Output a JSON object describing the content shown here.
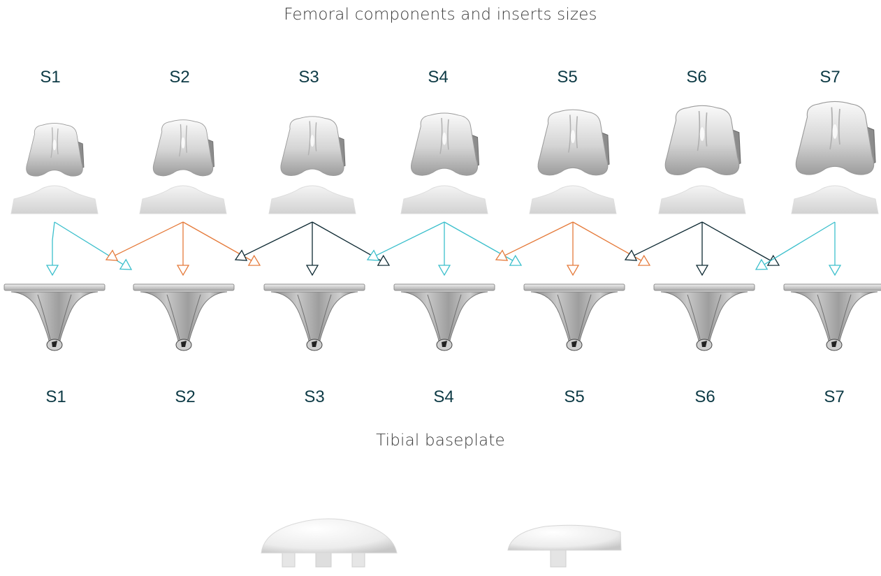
{
  "femoral_title": "Femoral components and inserts sizes",
  "tibial_title": "Tibial baseplate",
  "femoral_sizes": [
    "S1",
    "S2",
    "S3",
    "S4",
    "S5",
    "S6",
    "S7"
  ],
  "tibial_sizes": [
    "S1",
    "S2",
    "S3",
    "S4",
    "S5",
    "S6",
    "S7"
  ],
  "compatibility": [
    {
      "femoral": "S1",
      "tibial": [
        "S1",
        "S2"
      ],
      "color": "#3bbfcc"
    },
    {
      "femoral": "S2",
      "tibial": [
        "S1",
        "S2",
        "S3"
      ],
      "color": "#e57a3a"
    },
    {
      "femoral": "S3",
      "tibial": [
        "S2",
        "S3",
        "S4"
      ],
      "color": "#0e2a33"
    },
    {
      "femoral": "S4",
      "tibial": [
        "S3",
        "S4",
        "S5"
      ],
      "color": "#3bbfcc"
    },
    {
      "femoral": "S5",
      "tibial": [
        "S4",
        "S5",
        "S6"
      ],
      "color": "#e57a3a"
    },
    {
      "femoral": "S6",
      "tibial": [
        "S5",
        "S6",
        "S7"
      ],
      "color": "#0e2a33"
    },
    {
      "femoral": "S7",
      "tibial": [
        "S6",
        "S7"
      ],
      "color": "#3bbfcc"
    }
  ]
}
